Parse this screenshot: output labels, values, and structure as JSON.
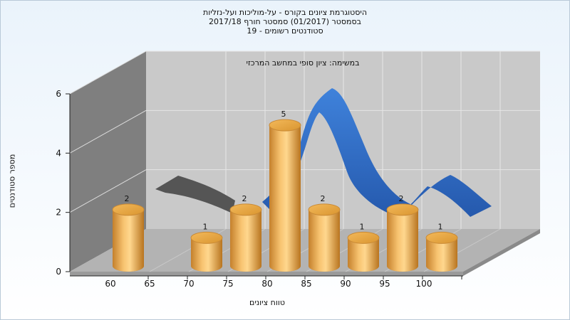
{
  "title_lines": [
    "היסטוגרמת ציונים בקורס - על-מוליכות ועל-נזליות",
    "בסמסטר  (01/2017)  סמסטר חורף 2017/18",
    "סטודנטים רשומים - 19"
  ],
  "chart_data": {
    "type": "bar",
    "subtitle": "במשימה: ציון סופי במחשב המרכזי",
    "xlabel": "טווח ציונים",
    "ylabel": "מספר סטודנטים",
    "x_ticks": [
      "60",
      "65",
      "70",
      "75",
      "80",
      "85",
      "90",
      "95",
      "100"
    ],
    "y_ticks": [
      0,
      2,
      4,
      6
    ],
    "ylim": [
      0,
      6
    ],
    "categories": [
      "60",
      "70",
      "75",
      "80",
      "85",
      "90",
      "95",
      "100"
    ],
    "values": [
      2,
      1,
      2,
      5,
      2,
      1,
      2,
      1
    ],
    "value_labels": [
      "2",
      "1",
      "2",
      "5",
      "2",
      "1",
      "2",
      "1"
    ],
    "trend_ribbon": "smoothed distribution curve drawn behind the bars",
    "grid": true,
    "colors": {
      "bar": "#e8a94c",
      "ribbon": "#2f6fc8",
      "ribbon_shadow": "#555555",
      "back_wall": "#c8c8c8",
      "side_wall": "#808080",
      "floor": "#b4b4b4"
    }
  }
}
